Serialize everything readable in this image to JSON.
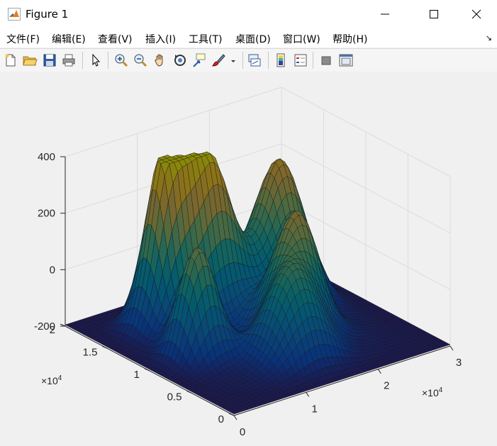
{
  "window": {
    "title": "Figure 1",
    "icon": "matlab-logo-icon",
    "controls": [
      "minimize-icon",
      "maximize-icon",
      "close-icon"
    ]
  },
  "menu": {
    "items": [
      {
        "label": "文件(F)"
      },
      {
        "label": "编辑(E)"
      },
      {
        "label": "查看(V)"
      },
      {
        "label": "插入(I)"
      },
      {
        "label": "工具(T)"
      },
      {
        "label": "桌面(D)"
      },
      {
        "label": "窗口(W)"
      },
      {
        "label": "帮助(H)"
      }
    ]
  },
  "toolbar": {
    "buttons": [
      "new-figure-icon",
      "open-icon",
      "save-icon",
      "print-icon",
      "pointer-icon",
      "zoom-in-icon",
      "zoom-out-icon",
      "pan-hand-icon",
      "rotate-3d-icon",
      "data-cursor-icon",
      "brush-icon",
      "brush-dropdown-icon",
      "link-plot-icon",
      "colorbar-icon",
      "legend-icon",
      "hide-plot-tools-icon",
      "show-plot-tools-icon"
    ]
  },
  "chart_data": {
    "type": "surface",
    "title": "",
    "xlabel": "",
    "ylabel": "",
    "zlabel": "",
    "colormap": "parula",
    "xlim": [
      0,
      30000
    ],
    "ylim": [
      0,
      20000
    ],
    "zlim": [
      -200,
      400
    ],
    "x_ticks": [
      0,
      1,
      2,
      3
    ],
    "x_multiplier": "×10",
    "x_multiplier_exp": "4",
    "y_ticks": [
      0,
      0.5,
      1,
      1.5,
      2
    ],
    "y_multiplier": "×10",
    "y_multiplier_exp": "4",
    "z_ticks": [
      -200,
      0,
      200,
      400
    ],
    "grid": true,
    "peaks_approx": [
      {
        "x": 8000,
        "y": 15000,
        "z": 420
      },
      {
        "x": 13000,
        "y": 14000,
        "z": 360
      },
      {
        "x": 22000,
        "y": 13500,
        "z": 300
      },
      {
        "x": 6000,
        "y": 9500,
        "z": 180
      },
      {
        "x": 18000,
        "y": 8000,
        "z": 190
      },
      {
        "x": 14000,
        "y": 5000,
        "z": 90
      }
    ]
  }
}
